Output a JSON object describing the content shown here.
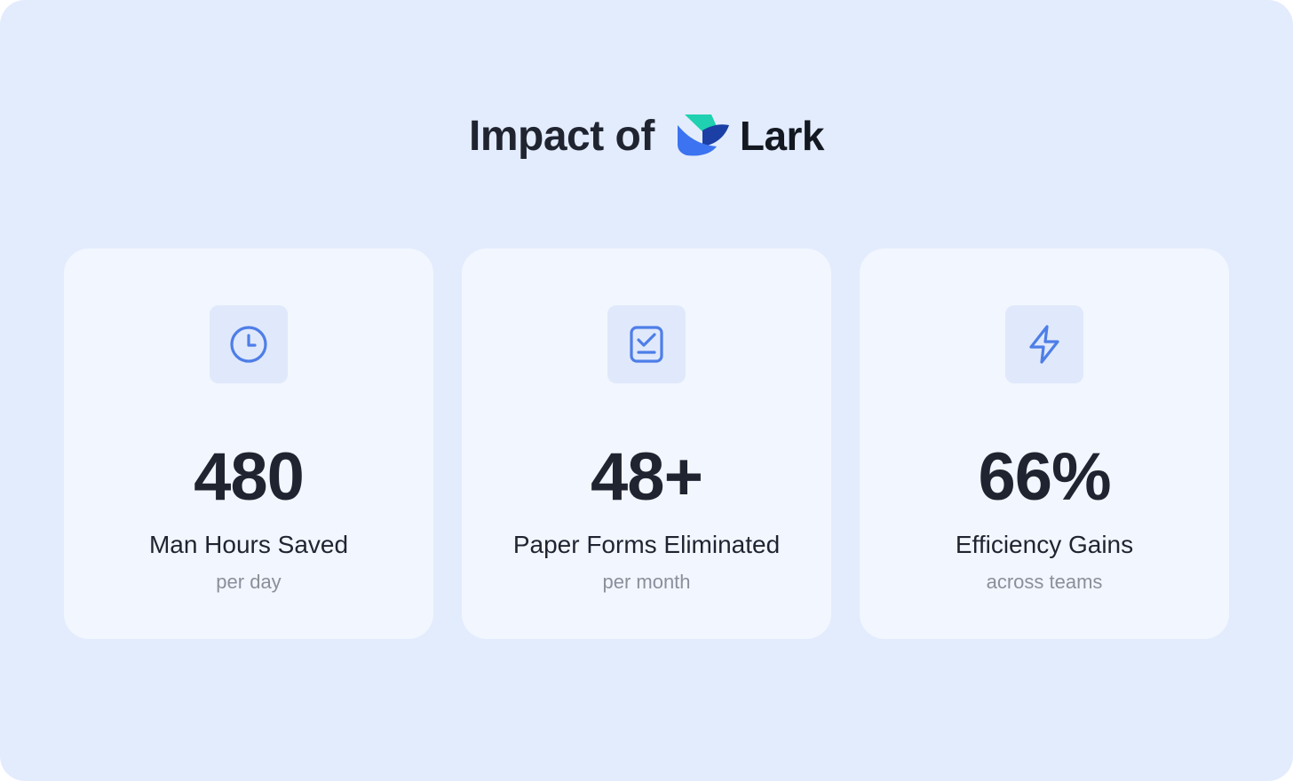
{
  "header": {
    "title": "Impact of",
    "brand_name": "Lark"
  },
  "stats": [
    {
      "icon": "clock-icon",
      "value": "480",
      "label": "Man Hours Saved",
      "sublabel": "per day"
    },
    {
      "icon": "checklist-document-icon",
      "value": "48+",
      "label": "Paper Forms Eliminated",
      "sublabel": "per month"
    },
    {
      "icon": "lightning-bolt-icon",
      "value": "66%",
      "label": "Efficiency Gains",
      "sublabel": "across teams"
    }
  ],
  "colors": {
    "background": "#e3ecfd",
    "card": "#f2f6fe",
    "icon_tile": "#e0e9fb",
    "icon_stroke": "#4e7ee8",
    "text_primary": "#1f2430",
    "text_secondary": "#8a909b",
    "logo_teal": "#1fd1b0",
    "logo_blue": "#3b73f0",
    "logo_navy": "#1b3fa5"
  }
}
